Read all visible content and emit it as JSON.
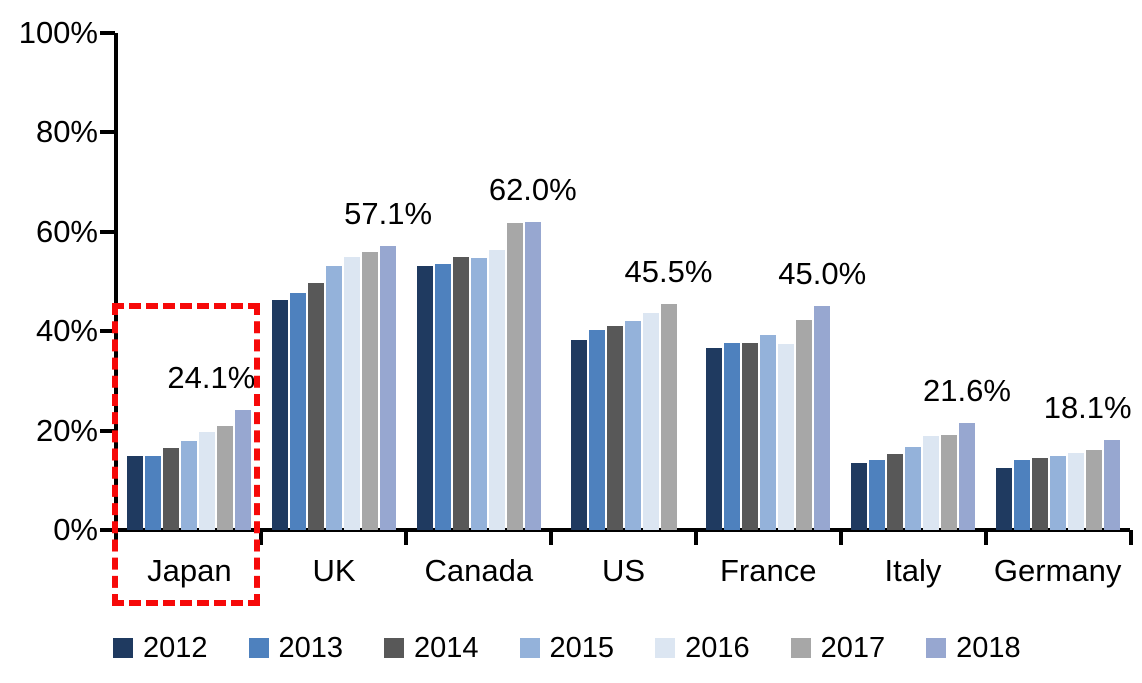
{
  "chart_data": {
    "type": "bar",
    "title": "",
    "categories": [
      "Japan",
      "UK",
      "Canada",
      "US",
      "France",
      "Italy",
      "Germany"
    ],
    "series": [
      {
        "name": "2012",
        "color": "#1F3A60",
        "values": [
          14.9,
          46.3,
          53.2,
          38.3,
          36.6,
          13.4,
          12.5
        ]
      },
      {
        "name": "2013",
        "color": "#4E81BE",
        "values": [
          14.9,
          47.7,
          53.6,
          40.2,
          37.7,
          14.0,
          14.0
        ]
      },
      {
        "name": "2014",
        "color": "#585858",
        "values": [
          16.6,
          49.8,
          55.0,
          41.0,
          37.6,
          15.2,
          14.4
        ]
      },
      {
        "name": "2015",
        "color": "#94B2DA",
        "values": [
          17.9,
          53.1,
          54.8,
          42.1,
          39.3,
          16.8,
          14.8
        ]
      },
      {
        "name": "2016",
        "color": "#DCE6F2",
        "values": [
          19.8,
          54.9,
          56.4,
          43.6,
          37.4,
          19.0,
          15.4
        ]
      },
      {
        "name": "2017",
        "color": "#A7A7A7",
        "values": [
          21.0,
          55.9,
          61.7,
          45.5,
          42.3,
          19.2,
          16.1
        ]
      },
      {
        "name": "2018",
        "color": "#97A7D0",
        "values": [
          24.1,
          57.1,
          62.0,
          null,
          45.0,
          21.6,
          18.1
        ]
      }
    ],
    "data_labels": [
      "24.1%",
      "57.1%",
      "62.0%",
      "45.5%",
      "45.0%",
      "21.6%",
      "18.1%"
    ],
    "data_label_dx": [
      -32,
      0,
      0,
      0,
      0,
      0,
      -24
    ],
    "y_axis": {
      "min": 0,
      "max": 100,
      "tick_step": 20,
      "ticks": [
        "0%",
        "20%",
        "40%",
        "60%",
        "80%",
        "100%"
      ]
    },
    "x_axis_label": "",
    "y_axis_label": "",
    "grid": false,
    "legend_position": "bottom",
    "highlight": {
      "category": "Japan",
      "style": "red-dashed-rectangle",
      "color": "#F60909"
    }
  }
}
